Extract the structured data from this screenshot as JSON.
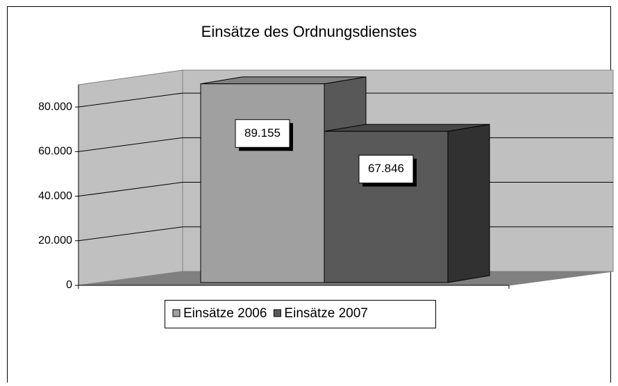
{
  "chart_data": {
    "type": "bar",
    "title": "Einsätze des Ordnungsdienstes",
    "categories": [
      null
    ],
    "series": [
      {
        "name": "Einsätze 2006",
        "color": "#a0a0a0",
        "values": [
          89155
        ],
        "value_labels": [
          "89.155"
        ]
      },
      {
        "name": "Einsätze 2007",
        "color": "#595959",
        "values": [
          67846
        ],
        "value_labels": [
          "67.846"
        ]
      }
    ],
    "ylim": [
      0,
      90000
    ],
    "yticks": [
      0,
      {
        "value": 20000,
        "label": "20.000"
      },
      {
        "value": 40000,
        "label": "40.000"
      },
      {
        "value": 60000,
        "label": "60.000"
      },
      {
        "value": 80000,
        "label": "80.000"
      }
    ],
    "grid": true,
    "legend": "bottom"
  }
}
